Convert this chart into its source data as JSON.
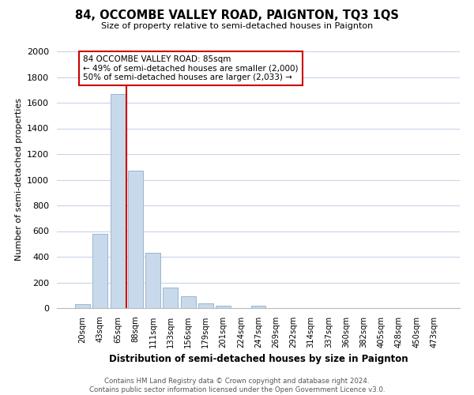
{
  "title": "84, OCCOMBE VALLEY ROAD, PAIGNTON, TQ3 1QS",
  "subtitle": "Size of property relative to semi-detached houses in Paignton",
  "xlabel": "Distribution of semi-detached houses by size in Paignton",
  "ylabel": "Number of semi-detached properties",
  "bar_labels": [
    "20sqm",
    "43sqm",
    "65sqm",
    "88sqm",
    "111sqm",
    "133sqm",
    "156sqm",
    "179sqm",
    "201sqm",
    "224sqm",
    "247sqm",
    "269sqm",
    "292sqm",
    "314sqm",
    "337sqm",
    "360sqm",
    "382sqm",
    "405sqm",
    "428sqm",
    "450sqm",
    "473sqm"
  ],
  "bar_values": [
    30,
    580,
    1670,
    1070,
    430,
    160,
    90,
    38,
    18,
    0,
    20,
    0,
    0,
    0,
    0,
    0,
    0,
    0,
    0,
    0,
    0
  ],
  "bar_color": "#c8d9ec",
  "bar_edge_color": "#9ab5d0",
  "highlight_color": "#cc0000",
  "annotation_text": "84 OCCOMBE VALLEY ROAD: 85sqm\n← 49% of semi-detached houses are smaller (2,000)\n50% of semi-detached houses are larger (2,033) →",
  "annotation_box_color": "#ffffff",
  "annotation_box_edge": "#cc0000",
  "ylim": [
    0,
    2000
  ],
  "yticks": [
    0,
    200,
    400,
    600,
    800,
    1000,
    1200,
    1400,
    1600,
    1800,
    2000
  ],
  "footer_line1": "Contains HM Land Registry data © Crown copyright and database right 2024.",
  "footer_line2": "Contains public sector information licensed under the Open Government Licence v3.0.",
  "background_color": "#ffffff",
  "grid_color": "#c8d4e8"
}
